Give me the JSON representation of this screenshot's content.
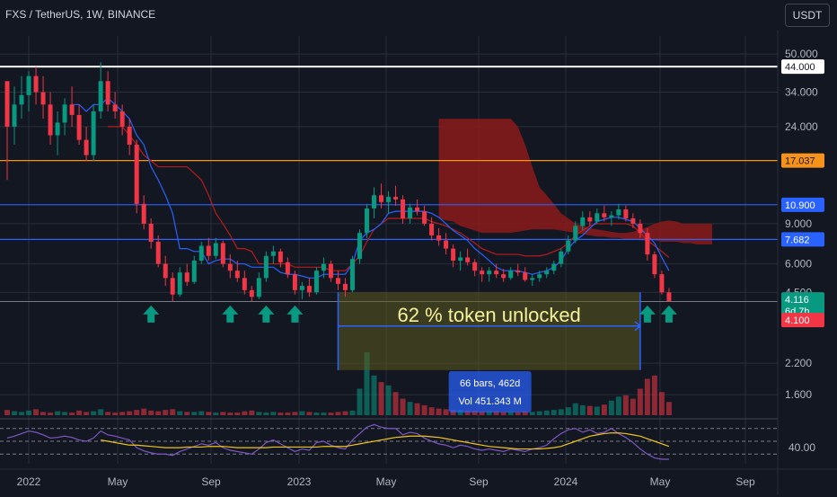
{
  "header": {
    "symbol_title": "FXS / TetherUS, 1W, BINANCE",
    "currency_button": "USDT"
  },
  "colors": {
    "background": "#131722",
    "up": "#089981",
    "down": "#f23645",
    "grid": "#2a2e39",
    "level_white": "#ffffff",
    "level_orange": "#f7931a",
    "level_blue": "#2962ff",
    "cloud_red": "#8b1a1a",
    "conversion_line": "#2962ff",
    "base_line": "#b71c1c",
    "rsi_line": "#7e57c2",
    "rsi_ma": "#f0c419",
    "annotation_box": "#5c5a1e",
    "annotation_text": "#f6f19b",
    "measure_box": "#2962ff",
    "arrow": "#089981"
  },
  "chart_data": {
    "type": "candlestick",
    "title": "FXS / TetherUS, 1W, BINANCE",
    "y_scale": "log",
    "ylim": [
      1.3,
      60
    ],
    "y_ticks": [
      "50.000",
      "34.000",
      "24.000",
      "9.000",
      "6.000",
      "4.500",
      "2.200",
      "1.600"
    ],
    "x_tick_labels": [
      "2022",
      "May",
      "Sep",
      "2023",
      "May",
      "Sep",
      "2024",
      "May",
      "Sep"
    ],
    "price_levels": [
      {
        "label": "44.000",
        "value": 44.0,
        "color": "#ffffff"
      },
      {
        "label": "17.037",
        "value": 17.037,
        "color": "#f7931a"
      },
      {
        "label": "10.900",
        "value": 10.9,
        "color": "#2962ff"
      },
      {
        "label": "7.682",
        "value": 7.682,
        "color": "#2962ff"
      }
    ],
    "current_price": {
      "label": "4.116",
      "countdown": "6d 7h",
      "color": "#089981"
    },
    "low_level": {
      "label": "4.100",
      "value": 4.1,
      "color": "#f23645"
    },
    "candles": [
      [
        38,
        38,
        14,
        24
      ],
      [
        24,
        36,
        20,
        30
      ],
      [
        30,
        40,
        26,
        33
      ],
      [
        33,
        42,
        28,
        40
      ],
      [
        40,
        44,
        30,
        34
      ],
      [
        34,
        40,
        26,
        30
      ],
      [
        30,
        34,
        20,
        22
      ],
      [
        22,
        28,
        18,
        25
      ],
      [
        25,
        32,
        22,
        30
      ],
      [
        30,
        36,
        24,
        27
      ],
      [
        27,
        30,
        20,
        21
      ],
      [
        21,
        24,
        17,
        18
      ],
      [
        18,
        30,
        17,
        28
      ],
      [
        28,
        46,
        26,
        38
      ],
      [
        38,
        42,
        28,
        30
      ],
      [
        30,
        34,
        26,
        28
      ],
      [
        28,
        30,
        22,
        24
      ],
      [
        24,
        26,
        18,
        20
      ],
      [
        20,
        21,
        10,
        11
      ],
      [
        11,
        12,
        8.5,
        9
      ],
      [
        9,
        9.5,
        7,
        7.5
      ],
      [
        7.5,
        8,
        5.8,
        6
      ],
      [
        6,
        6.5,
        4.8,
        5.2
      ],
      [
        5.2,
        5.5,
        4.1,
        4.4
      ],
      [
        4.4,
        5.8,
        4.3,
        5.5
      ],
      [
        5.5,
        6,
        4.8,
        5
      ],
      [
        5,
        6.5,
        4.9,
        6.2
      ],
      [
        6.2,
        7.5,
        6,
        7.2
      ],
      [
        7.2,
        7.8,
        6.2,
        6.5
      ],
      [
        6.5,
        7.8,
        6.3,
        7.4
      ],
      [
        7.4,
        7.6,
        5.8,
        6
      ],
      [
        6,
        6.6,
        5.2,
        5.6
      ],
      [
        5.6,
        6.2,
        5,
        5.2
      ],
      [
        5.2,
        5.6,
        4.4,
        4.6
      ],
      [
        4.6,
        4.8,
        4.1,
        4.3
      ],
      [
        4.3,
        5.5,
        4.2,
        5.2
      ],
      [
        5.2,
        6.8,
        5,
        6.5
      ],
      [
        6.5,
        7.2,
        6,
        6.8
      ],
      [
        6.8,
        7,
        5.8,
        6.1
      ],
      [
        6.1,
        6.4,
        5.2,
        5.4
      ],
      [
        5.4,
        5.6,
        4.4,
        4.6
      ],
      [
        4.6,
        5,
        4.2,
        4.8
      ],
      [
        4.8,
        5.2,
        4.3,
        4.5
      ],
      [
        4.5,
        5.8,
        4.4,
        5.6
      ],
      [
        5.6,
        6.4,
        5.2,
        6
      ],
      [
        6,
        6.2,
        5,
        5.2
      ],
      [
        5.2,
        5.6,
        4.6,
        4.9
      ],
      [
        4.9,
        5.2,
        4.3,
        4.6
      ],
      [
        4.6,
        6.5,
        4.5,
        6.3
      ],
      [
        6.3,
        8.5,
        6,
        8.2
      ],
      [
        8.2,
        11,
        7.8,
        10.5
      ],
      [
        10.5,
        13,
        9.5,
        12
      ],
      [
        12,
        13.5,
        10.5,
        11.2
      ],
      [
        11.2,
        12.5,
        10,
        11.8
      ],
      [
        11.8,
        13.2,
        10.8,
        11.5
      ],
      [
        11.5,
        12,
        9,
        9.5
      ],
      [
        9.5,
        11,
        9,
        10.6
      ],
      [
        10.6,
        11.5,
        9.8,
        10.2
      ],
      [
        10.2,
        10.8,
        8.8,
        9
      ],
      [
        9,
        9.6,
        7.6,
        8
      ],
      [
        8,
        8.6,
        7.2,
        7.6
      ],
      [
        7.6,
        8.2,
        6.6,
        7
      ],
      [
        7,
        7.3,
        5.8,
        6.2
      ],
      [
        6.2,
        6.8,
        5.6,
        6.4
      ],
      [
        6.4,
        7,
        5.9,
        6.1
      ],
      [
        6.1,
        6.3,
        5.3,
        5.6
      ],
      [
        5.6,
        5.8,
        5,
        5.4
      ],
      [
        5.4,
        5.8,
        5,
        5.6
      ],
      [
        5.6,
        6,
        5.2,
        5.4
      ],
      [
        5.4,
        5.7,
        5,
        5.2
      ],
      [
        5.2,
        5.8,
        5.1,
        5.6
      ],
      [
        5.6,
        6,
        5.3,
        5.5
      ],
      [
        5.5,
        5.8,
        5,
        5.1
      ],
      [
        5.1,
        5.4,
        4.8,
        5.2
      ],
      [
        5.2,
        5.6,
        5,
        5.4
      ],
      [
        5.4,
        5.8,
        5.2,
        5.6
      ],
      [
        5.6,
        6.2,
        5.4,
        6
      ],
      [
        6,
        7,
        5.8,
        6.8
      ],
      [
        6.8,
        8,
        6.6,
        7.6
      ],
      [
        7.6,
        9.2,
        7.4,
        8.8
      ],
      [
        8.8,
        10.2,
        8.4,
        9.6
      ],
      [
        9.6,
        10.2,
        8.8,
        9.2
      ],
      [
        9.2,
        10.5,
        9,
        10
      ],
      [
        10,
        10.8,
        9.2,
        9.6
      ],
      [
        9.6,
        10.2,
        8.8,
        9.8
      ],
      [
        9.8,
        11,
        9.4,
        10.4
      ],
      [
        10.4,
        10.8,
        9.2,
        9.5
      ],
      [
        9.5,
        10,
        8.6,
        9
      ],
      [
        9,
        9.4,
        7.8,
        8.2
      ],
      [
        8.2,
        8.6,
        6.2,
        6.6
      ],
      [
        6.6,
        6.8,
        5.2,
        5.4
      ],
      [
        5.4,
        5.6,
        4.4,
        4.5
      ],
      [
        4.5,
        4.7,
        4.1,
        4.116
      ]
    ],
    "volumes": [
      8,
      6,
      5,
      7,
      9,
      5,
      4,
      6,
      5,
      4,
      7,
      5,
      6,
      9,
      5,
      4,
      5,
      6,
      8,
      10,
      7,
      6,
      8,
      9,
      6,
      5,
      5,
      6,
      5,
      4,
      5,
      4,
      4,
      6,
      7,
      5,
      4,
      5,
      4,
      4,
      5,
      6,
      5,
      4,
      4,
      4,
      5,
      6,
      7,
      40,
      95,
      60,
      50,
      45,
      35,
      25,
      20,
      18,
      15,
      12,
      10,
      9,
      8,
      8,
      7,
      7,
      6,
      6,
      6,
      5,
      6,
      5,
      6,
      5,
      6,
      7,
      8,
      9,
      12,
      18,
      15,
      14,
      13,
      16,
      22,
      28,
      30,
      25,
      40,
      55,
      60,
      35,
      20
    ],
    "tenkan": [
      null,
      null,
      null,
      null,
      null,
      null,
      null,
      null,
      null,
      30,
      30,
      28,
      30,
      30,
      32,
      30,
      28,
      26,
      22,
      20,
      16,
      14,
      12,
      10,
      7,
      7,
      6.8,
      6.8,
      6,
      6.2,
      6.3,
      6.3,
      6,
      6,
      5.8,
      5.8,
      5.8,
      5.8,
      5.5,
      5.4,
      5.4,
      5.3,
      5.2,
      5.2,
      5.4,
      5.4,
      5.4,
      5.4,
      6,
      7.6,
      8.2,
      8.5,
      9,
      10,
      10.2,
      10.2,
      10.2,
      10.2,
      10.2,
      10,
      9.6,
      9,
      8.4,
      8,
      7.6,
      7,
      6.6,
      6.2,
      5.8,
      5.6,
      5.6,
      5.6,
      5.5,
      5.4,
      5.5,
      5.6,
      5.8,
      6.2,
      7,
      7.6,
      8,
      8.6,
      9.2,
      9.4,
      9.6,
      9.6,
      9.4,
      9.2,
      8.6,
      8,
      7.4,
      6.4,
      5.6
    ],
    "kijun": [
      null,
      null,
      null,
      null,
      null,
      null,
      null,
      null,
      null,
      null,
      null,
      null,
      null,
      null,
      24,
      24,
      24,
      22,
      20,
      18,
      17,
      16,
      16,
      16,
      16,
      16,
      15,
      14,
      12,
      10,
      9,
      8,
      7,
      7,
      6.8,
      6,
      6,
      6,
      6,
      6,
      5.8,
      5.8,
      5.8,
      5.8,
      5.8,
      5.6,
      5.6,
      5.6,
      6,
      6.5,
      7.5,
      8.5,
      9,
      9.5,
      9.5,
      9.5,
      9.5,
      9.5,
      9.5,
      9.2,
      9,
      8.8,
      8.5,
      8.2,
      7.8,
      7.4,
      7,
      6.8,
      6.6,
      6.6,
      6.6,
      6.6,
      6.5,
      6.5,
      6.5,
      6.6,
      6.8,
      7,
      7.4,
      8,
      8.4,
      8.8,
      9,
      9,
      9,
      9,
      9,
      8.8,
      8.2,
      7.6,
      7.2,
      6.8,
      6.4
    ],
    "cloud": {
      "start_index": 60,
      "top": [
        26,
        26,
        26,
        26,
        26,
        26,
        26,
        26,
        26,
        26,
        26,
        24,
        20,
        16,
        13,
        12,
        11,
        10,
        9.5,
        9,
        8.8,
        8.6,
        8.5,
        8.4,
        8.3,
        8.2,
        8.2,
        8.3,
        8.5,
        8.7,
        9,
        9.2,
        9.3,
        9.2,
        9,
        9,
        9,
        9,
        9
      ],
      "bottom": [
        9.5,
        9.3,
        9.2,
        8.8,
        8.6,
        8.4,
        8.2,
        8.2,
        8.2,
        8.2,
        8.2,
        8.3,
        8.4,
        8.5,
        8.5,
        8.5,
        8.5,
        8.4,
        8.3,
        8.2,
        8.1,
        8,
        7.9,
        7.9,
        7.8,
        7.8,
        7.7,
        7.7,
        7.6,
        7.6,
        7.6,
        7.5,
        7.5,
        7.5,
        7.4,
        7.4,
        7.3,
        7.3,
        7.3
      ]
    },
    "rsi": {
      "axis_label": "40.00",
      "values": [
        55,
        58,
        62,
        66,
        64,
        60,
        55,
        56,
        58,
        56,
        52,
        50,
        55,
        66,
        60,
        58,
        55,
        52,
        40,
        35,
        32,
        30,
        30,
        28,
        34,
        38,
        42,
        46,
        44,
        48,
        40,
        36,
        34,
        32,
        30,
        38,
        48,
        52,
        46,
        40,
        34,
        38,
        36,
        48,
        50,
        44,
        40,
        38,
        52,
        62,
        72,
        76,
        72,
        70,
        70,
        60,
        64,
        62,
        55,
        50,
        46,
        44,
        40,
        44,
        42,
        38,
        36,
        38,
        36,
        34,
        38,
        36,
        34,
        38,
        40,
        44,
        54,
        62,
        68,
        70,
        64,
        68,
        62,
        64,
        70,
        62,
        56,
        48,
        38,
        30,
        24,
        22,
        22
      ],
      "ma": [
        null,
        null,
        null,
        null,
        null,
        null,
        null,
        null,
        null,
        null,
        null,
        null,
        null,
        52,
        50,
        48,
        46,
        44,
        44,
        43,
        42,
        41,
        40,
        40,
        40,
        41,
        41,
        41,
        42,
        42,
        42,
        41,
        40,
        40,
        40,
        40,
        40,
        41,
        41,
        41,
        41,
        41,
        41,
        41,
        42,
        42,
        42,
        42,
        44,
        46,
        48,
        50,
        52,
        54,
        56,
        57,
        58,
        58,
        58,
        57,
        56,
        54,
        52,
        50,
        48,
        46,
        44,
        42,
        41,
        40,
        39,
        38,
        38,
        38,
        38,
        39,
        40,
        42,
        46,
        50,
        54,
        58,
        60,
        62,
        63,
        63,
        62,
        60,
        58,
        54,
        50,
        46,
        42
      ]
    },
    "annotations": {
      "box_text": "62 % token unlocked",
      "measure_bars": "66 bars, 462d",
      "measure_vol": "Vol 451.343 M"
    }
  }
}
